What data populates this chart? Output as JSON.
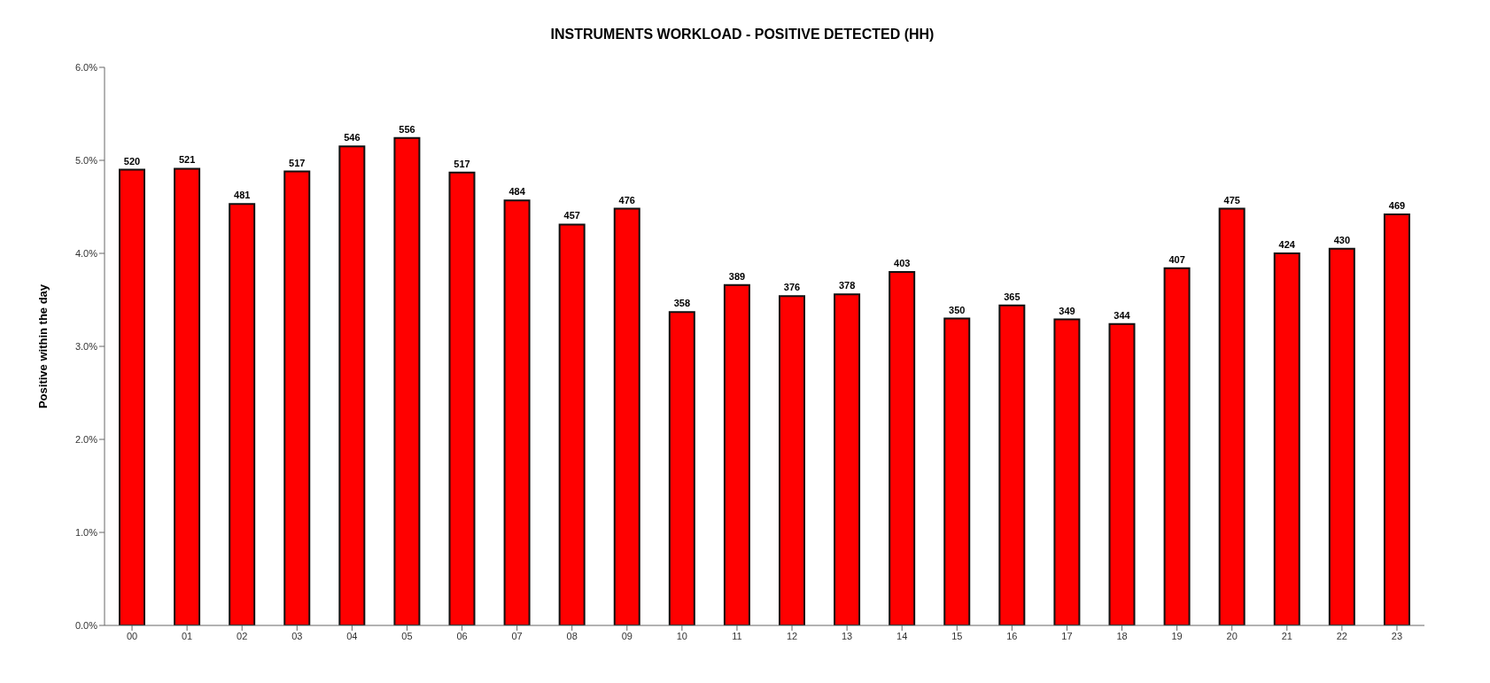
{
  "chart_data": {
    "type": "bar",
    "title": "INSTRUMENTS WORKLOAD - POSITIVE DETECTED (HH)",
    "ylabel": "Positive within the day",
    "categories": [
      "00",
      "01",
      "02",
      "03",
      "04",
      "05",
      "06",
      "07",
      "08",
      "09",
      "10",
      "11",
      "12",
      "13",
      "14",
      "15",
      "16",
      "17",
      "18",
      "19",
      "20",
      "21",
      "22",
      "23"
    ],
    "values": [
      4.9,
      4.91,
      4.53,
      4.88,
      5.15,
      5.24,
      4.87,
      4.57,
      4.31,
      4.48,
      3.37,
      3.66,
      3.54,
      3.56,
      3.8,
      3.3,
      3.44,
      3.29,
      3.24,
      3.84,
      4.48,
      4.0,
      4.05,
      4.42
    ],
    "annotations": [
      {
        "text": "520",
        "x": "00",
        "y": 4.9
      },
      {
        "text": "521",
        "x": "01",
        "y": 4.91
      },
      {
        "text": "481",
        "x": "02",
        "y": 4.53
      },
      {
        "text": "517",
        "x": "03",
        "y": 4.88
      },
      {
        "text": "546",
        "x": "04",
        "y": 5.15
      },
      {
        "text": "556",
        "x": "05",
        "y": 5.24
      },
      {
        "text": "517",
        "x": "06",
        "y": 4.87
      },
      {
        "text": "484",
        "x": "07",
        "y": 4.57
      },
      {
        "text": "457",
        "x": "08",
        "y": 4.31
      },
      {
        "text": "476",
        "x": "09",
        "y": 4.48
      },
      {
        "text": "358",
        "x": "10",
        "y": 3.37
      },
      {
        "text": "389",
        "x": "11",
        "y": 3.66
      },
      {
        "text": "376",
        "x": "12",
        "y": 3.54
      },
      {
        "text": "378",
        "x": "13",
        "y": 3.56
      },
      {
        "text": "403",
        "x": "14",
        "y": 3.8
      },
      {
        "text": "350",
        "x": "15",
        "y": 3.3
      },
      {
        "text": "365",
        "x": "16",
        "y": 3.44
      },
      {
        "text": "349",
        "x": "17",
        "y": 3.29
      },
      {
        "text": "344",
        "x": "18",
        "y": 3.24
      },
      {
        "text": "407",
        "x": "19",
        "y": 3.84
      },
      {
        "text": "475",
        "x": "20",
        "y": 4.48
      },
      {
        "text": "424",
        "x": "21",
        "y": 4.0
      },
      {
        "text": "430",
        "x": "22",
        "y": 4.05
      },
      {
        "text": "469",
        "x": "23",
        "y": 4.42
      }
    ],
    "color": "#ff0000",
    "ylim": [
      0,
      6
    ],
    "yticks": [
      {
        "value": 0,
        "label": "0.0%"
      },
      {
        "value": 1,
        "label": "1.0%"
      },
      {
        "value": 2,
        "label": "2.0%"
      },
      {
        "value": 3,
        "label": "3.0%"
      },
      {
        "value": 4,
        "label": "4.0%"
      },
      {
        "value": 5,
        "label": "5.0%"
      },
      {
        "value": 6,
        "label": "6.0%"
      }
    ],
    "grid": false,
    "legend": false
  }
}
